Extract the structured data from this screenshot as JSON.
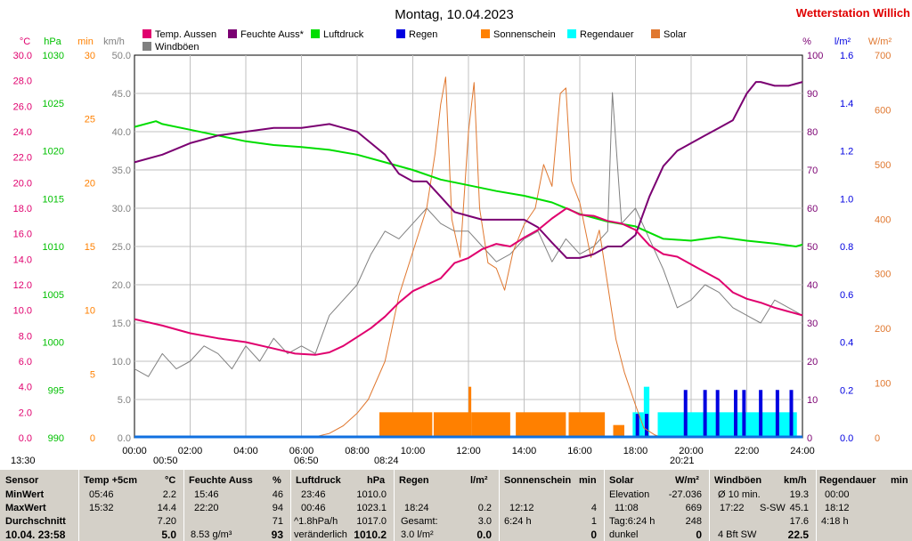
{
  "header": {
    "title": "Montag, 10.04.2023",
    "station": "Wetterstation Willich"
  },
  "colors": {
    "temp": "#e0006e",
    "humidity": "#7b0072",
    "pressure": "#00dd00",
    "rain": "#0000e0",
    "sunshine": "#ff8000",
    "rain_duration": "#00ffff",
    "solar": "#e07830",
    "gusts": "#808080",
    "background": "#ffffff",
    "table_bg": "#d4d0c8"
  },
  "legend": [
    {
      "label": "Temp. Aussen",
      "color": "#e0006e"
    },
    {
      "label": "Feuchte Auss*",
      "color": "#7b0072"
    },
    {
      "label": "Luftdruck",
      "color": "#00dd00"
    },
    {
      "label": "Regen",
      "color": "#0000e0"
    },
    {
      "label": "Sonnenschein",
      "color": "#ff8000"
    },
    {
      "label": "Regendauer",
      "color": "#00ffff"
    },
    {
      "label": "Solar",
      "color": "#e07830"
    },
    {
      "label": "Windböen",
      "color": "#808080"
    }
  ],
  "axes": {
    "temp": {
      "unit": "°C",
      "ticks": [
        "30.0",
        "28.0",
        "26.0",
        "24.0",
        "22.0",
        "20.0",
        "18.0",
        "16.0",
        "14.0",
        "12.0",
        "10.0",
        "8.0",
        "6.0",
        "4.0",
        "2.0",
        "0.0"
      ]
    },
    "pressure": {
      "unit": "hPa",
      "ticks": [
        "1030",
        "1025",
        "1020",
        "1015",
        "1010",
        "1005",
        "1000",
        "995",
        "990"
      ]
    },
    "sun_min": {
      "unit": "min",
      "ticks": [
        "30",
        "25",
        "20",
        "15",
        "10",
        "5",
        "0"
      ]
    },
    "wind": {
      "unit": "km/h",
      "ticks": [
        "50.0",
        "45.0",
        "40.0",
        "35.0",
        "30.0",
        "25.0",
        "20.0",
        "15.0",
        "10.0",
        "5.0",
        "0.0"
      ]
    },
    "humidity": {
      "unit": "%",
      "ticks": [
        "100",
        "90",
        "80",
        "70",
        "60",
        "50",
        "40",
        "30",
        "20",
        "10",
        "0"
      ]
    },
    "rain": {
      "unit": "l/m²",
      "ticks": [
        "1.6",
        "1.4",
        "1.2",
        "1.0",
        "0.8",
        "0.6",
        "0.4",
        "0.2",
        "0.0"
      ]
    },
    "solar": {
      "unit": "W/m²",
      "ticks": [
        "700",
        "600",
        "500",
        "400",
        "300",
        "200",
        "100",
        "0"
      ]
    },
    "time": {
      "ticks": [
        "00:00",
        "02:00",
        "04:00",
        "06:00",
        "08:00",
        "10:00",
        "12:00",
        "14:00",
        "16:00",
        "18:00",
        "20:00",
        "22:00",
        "24:00"
      ]
    }
  },
  "time_markers": [
    {
      "label": "13:30"
    },
    {
      "label": "00:50"
    },
    {
      "label": "06:50"
    },
    {
      "label": "08:24"
    },
    {
      "label": "20:21"
    }
  ],
  "chart_data": {
    "type": "line",
    "x_unit": "hour",
    "xlim": [
      0,
      24
    ],
    "series": [
      {
        "name": "Temp. Aussen",
        "axis": "temp",
        "ylim": [
          0,
          30
        ],
        "x": [
          0,
          1,
          2,
          3,
          4,
          5,
          5.77,
          6.5,
          7,
          7.5,
          8,
          8.5,
          9,
          9.5,
          10,
          10.5,
          11,
          11.5,
          12,
          12.5,
          13,
          13.5,
          14,
          14.5,
          15,
          15.53,
          16,
          16.5,
          17,
          17.5,
          18,
          18.5,
          19,
          19.5,
          20,
          20.5,
          21,
          21.5,
          22,
          22.5,
          23,
          23.5,
          24
        ],
        "y": [
          9.3,
          8.8,
          8.2,
          7.8,
          7.5,
          7.0,
          6.6,
          6.5,
          6.7,
          7.2,
          7.9,
          8.6,
          9.5,
          10.6,
          11.5,
          12.0,
          12.5,
          13.7,
          14.1,
          14.8,
          15.2,
          15.0,
          15.7,
          16.3,
          17.2,
          18.0,
          17.5,
          17.4,
          17.0,
          16.8,
          16.3,
          15.1,
          14.4,
          14.2,
          13.6,
          13.0,
          12.4,
          11.4,
          10.9,
          10.6,
          10.2,
          9.9,
          9.6
        ]
      },
      {
        "name": "Feuchte Auss*",
        "axis": "humidity",
        "ylim": [
          0,
          100
        ],
        "x": [
          0,
          1,
          2,
          3,
          4,
          5,
          6,
          7,
          7.5,
          8,
          8.5,
          9,
          9.5,
          10,
          10.5,
          11,
          11.5,
          12,
          12.5,
          13,
          13.5,
          14,
          14.5,
          15,
          15.53,
          16,
          16.5,
          17,
          17.5,
          18,
          18.5,
          19,
          19.5,
          20,
          20.5,
          21,
          21.5,
          22,
          22.33,
          22.5,
          23,
          23.5,
          24
        ],
        "y": [
          72,
          74,
          77,
          79,
          80,
          81,
          81,
          82,
          81,
          80,
          77,
          74,
          69,
          67,
          67,
          63,
          59,
          58,
          57,
          57,
          57,
          57,
          55,
          51,
          47,
          47,
          48,
          50,
          50,
          53,
          63,
          71,
          75,
          77,
          79,
          81,
          83,
          90,
          93,
          93,
          92,
          92,
          93
        ]
      },
      {
        "name": "Luftdruck",
        "axis": "pressure",
        "ylim": [
          990,
          1030
        ],
        "x": [
          0,
          0.77,
          1,
          2,
          3,
          4,
          5,
          6,
          7,
          8,
          9,
          10,
          11,
          12,
          13,
          14,
          15,
          16,
          17,
          18,
          19,
          20,
          21,
          22,
          23,
          23.77,
          24
        ],
        "y": [
          1022.5,
          1023.1,
          1022.8,
          1022.2,
          1021.6,
          1021.0,
          1020.6,
          1020.4,
          1020.1,
          1019.6,
          1018.8,
          1018.0,
          1017.0,
          1016.4,
          1015.8,
          1015.3,
          1014.6,
          1013.4,
          1012.6,
          1012.1,
          1010.8,
          1010.6,
          1011.0,
          1010.6,
          1010.3,
          1010.0,
          1010.2
        ]
      },
      {
        "name": "Solar",
        "axis": "solar",
        "ylim": [
          0,
          700
        ],
        "x": [
          0,
          6,
          6.5,
          7,
          7.5,
          8,
          8.4,
          9,
          9.5,
          10,
          10.5,
          10.8,
          11,
          11.18,
          11.4,
          11.7,
          12,
          12.2,
          12.4,
          12.7,
          13,
          13.3,
          13.6,
          14,
          14.4,
          14.7,
          15,
          15.3,
          15.5,
          15.7,
          16,
          16.4,
          16.7,
          17,
          17.3,
          17.6,
          18,
          18.3,
          18.7,
          19,
          24
        ],
        "y": [
          0,
          0,
          2,
          8,
          22,
          45,
          70,
          140,
          260,
          340,
          420,
          520,
          610,
          660,
          400,
          330,
          560,
          650,
          420,
          320,
          310,
          270,
          340,
          390,
          420,
          500,
          460,
          630,
          640,
          470,
          430,
          330,
          380,
          280,
          180,
          120,
          60,
          18,
          5,
          0,
          0
        ]
      },
      {
        "name": "Windböen",
        "axis": "wind",
        "ylim": [
          0,
          50
        ],
        "x": [
          0,
          0.5,
          1,
          1.5,
          2,
          2.5,
          3,
          3.5,
          4,
          4.5,
          5,
          5.5,
          6,
          6.5,
          7,
          7.5,
          8,
          8.5,
          9,
          9.5,
          10,
          10.5,
          11,
          11.5,
          12,
          12.5,
          13,
          13.5,
          14,
          14.5,
          15,
          15.5,
          16,
          16.5,
          17,
          17.17,
          17.5,
          18,
          18.5,
          19,
          19.5,
          20,
          20.5,
          21,
          21.5,
          22,
          22.5,
          23,
          23.5,
          24
        ],
        "y": [
          9,
          8,
          11,
          9,
          10,
          12,
          11,
          9,
          12,
          10,
          13,
          11,
          12,
          11,
          16,
          18,
          20,
          24,
          27,
          26,
          28,
          30,
          28,
          27,
          27,
          25,
          23,
          24,
          26,
          27,
          23,
          26,
          24,
          25,
          27,
          45.1,
          28,
          30,
          26,
          22,
          17,
          18,
          20,
          19,
          17,
          16,
          15,
          18,
          17,
          16
        ]
      },
      {
        "name": "Sonnenschein",
        "axis": "sun_min",
        "ylim": [
          0,
          30
        ],
        "type": "bar",
        "intervals": [
          [
            8.8,
            10.7,
            2
          ],
          [
            10.75,
            12.0,
            2
          ],
          [
            12.0,
            12.1,
            4
          ],
          [
            12.1,
            13.5,
            2
          ],
          [
            13.7,
            15.5,
            2
          ],
          [
            15.6,
            16.9,
            2
          ],
          [
            17.2,
            17.6,
            1
          ]
        ]
      },
      {
        "name": "Regendauer",
        "axis": "sun_min",
        "ylim": [
          0,
          30
        ],
        "type": "bar",
        "intervals": [
          [
            17.9,
            18.3,
            2
          ],
          [
            18.3,
            18.5,
            4
          ],
          [
            18.8,
            23.8,
            2
          ]
        ]
      },
      {
        "name": "Regen",
        "axis": "rain",
        "ylim": [
          0,
          1.6
        ],
        "type": "bar",
        "x": [
          18.07,
          18.4,
          19.8,
          20.5,
          20.95,
          21.6,
          21.9,
          22.5,
          23.1,
          23.6
        ],
        "y": [
          0.1,
          0.1,
          0.2,
          0.2,
          0.2,
          0.2,
          0.2,
          0.2,
          0.2,
          0.2
        ]
      }
    ]
  },
  "table": {
    "headers": {
      "sensor": "Sensor",
      "temp": "Temp +5cm",
      "temp_u": "°C",
      "hum": "Feuchte Auss",
      "hum_u": "%",
      "press": "Luftdruck",
      "press_u": "hPa",
      "rain": "Regen",
      "rain_u": "l/m²",
      "sun": "Sonnenschein",
      "sun_u": "min",
      "solar": "Solar",
      "solar_u": "W/m²",
      "wind": "Windböen",
      "wind_u": "km/h",
      "rd": "Regendauer",
      "rd_u": "min"
    },
    "rows": {
      "min_label": "MinWert",
      "max_label": "MaxWert",
      "avg_label": "Durchschnitt",
      "now_label": "10.04. 23:58",
      "temp": {
        "min_t": "05:46",
        "min": "2.2",
        "max_t": "15:32",
        "max": "14.4",
        "avg": "7.20",
        "now": "5.0"
      },
      "hum": {
        "min_t": "15:46",
        "min": "46",
        "max_t": "22:20",
        "max": "94",
        "avg": "71",
        "now_l": "8.53 g/m³",
        "now": "93"
      },
      "press": {
        "min_t": "23:46",
        "min": "1010.0",
        "max_t": "00:46",
        "max": "1023.1",
        "avg_l": "^1.8hPa/h",
        "avg": "1017.0",
        "now_l": "veränderlich",
        "now": "1010.2"
      },
      "rain": {
        "max_t": "18:24",
        "max": "0.2",
        "avg_l": "Gesamt:",
        "avg": "3.0",
        "now_l": "3.0 l/m²",
        "now": "0.0"
      },
      "sun": {
        "max_t": "12:12",
        "max": "4",
        "avg_l": "6:24 h",
        "avg": "1",
        "now": "0"
      },
      "solar": {
        "min_l": "Elevation",
        "min": "-27.036",
        "max_t": "11:08",
        "max": "669",
        "avg_l": "Tag:6:24 h",
        "avg": "248",
        "now_l": "dunkel",
        "now": "0"
      },
      "wind": {
        "min_l": "Ø 10 min.",
        "min": "19.3",
        "max_t": "17:22",
        "max_dir": "S-SW",
        "max": "45.1",
        "avg": "17.6",
        "now_l": "4 Bft SW",
        "now": "22.5"
      },
      "rd": {
        "min_t": "00:00",
        "max_t": "18:12",
        "avg": "4:18 h"
      }
    }
  }
}
